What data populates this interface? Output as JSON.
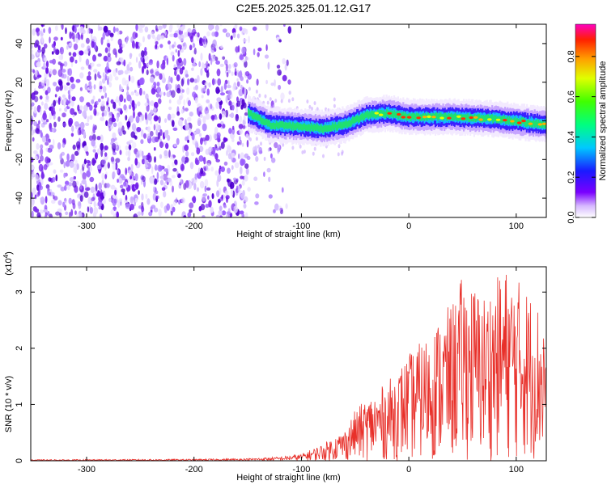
{
  "chart_data": [
    {
      "type": "heatmap",
      "title": "C2E5.2025.325.01.12.G17",
      "xlabel": "Height of straight line (km)",
      "ylabel": "Frequency (Hz)",
      "xlim": [
        -352,
        128
      ],
      "ylim": [
        -50,
        50
      ],
      "xticks": [
        -300,
        -200,
        -100,
        0,
        100
      ],
      "yticks": [
        -40,
        -20,
        0,
        20,
        40
      ],
      "colorbar": {
        "label": "Normalized spectral amplitude",
        "range": [
          0,
          0.96
        ],
        "ticks": [
          0.0,
          0.2,
          0.4,
          0.6,
          0.8
        ]
      },
      "description_points": {
        "noise_region_km": [
          -352,
          -150
        ],
        "signal_start_km": -150,
        "signal_band_freq_hz": [
          [
            -150,
            4
          ],
          [
            -130,
            -2
          ],
          [
            -100,
            -3
          ],
          [
            -80,
            -4
          ],
          [
            -60,
            -2
          ],
          [
            -40,
            3
          ],
          [
            -20,
            4
          ],
          [
            0,
            2
          ],
          [
            40,
            2
          ],
          [
            80,
            1
          ],
          [
            128,
            -2
          ]
        ]
      }
    },
    {
      "type": "line",
      "title": "",
      "xlabel": "Height of straight line (km)",
      "ylabel": "SNR (10 * v/v)",
      "y_multiplier": "(x10",
      "y_multiplier_exp": "4",
      "y_multiplier_close": ")",
      "xlim": [
        -352,
        128
      ],
      "ylim": [
        0,
        3.45
      ],
      "xticks": [
        -300,
        -200,
        -100,
        0,
        100
      ],
      "yticks": [
        0,
        1,
        2,
        3
      ],
      "series": [
        {
          "name": "SNR",
          "color": "#e8302a",
          "envelope": [
            [
              -352,
              0.02
            ],
            [
              -200,
              0.03
            ],
            [
              -150,
              0.04
            ],
            [
              -120,
              0.07
            ],
            [
              -100,
              0.12
            ],
            [
              -80,
              0.3
            ],
            [
              -60,
              0.55
            ],
            [
              -50,
              0.9
            ],
            [
              -40,
              1.1
            ],
            [
              -20,
              1.4
            ],
            [
              0,
              1.9
            ],
            [
              20,
              2.3
            ],
            [
              30,
              2.6
            ],
            [
              40,
              2.8
            ],
            [
              50,
              3.3
            ],
            [
              70,
              3.0
            ],
            [
              90,
              3.45
            ],
            [
              110,
              3.1
            ],
            [
              128,
              2.6
            ]
          ]
        }
      ]
    }
  ],
  "ui": {
    "title": "C2E5.2025.325.01.12.G17"
  }
}
